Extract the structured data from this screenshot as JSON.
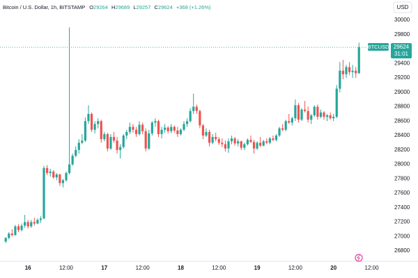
{
  "header": {
    "symbol": "Bitcoin / U.S. Dollar, 1h, BITSTAMP",
    "ohlc_labels": [
      "O",
      "H",
      "L",
      "C"
    ],
    "change": "+368 (+1.26%)",
    "currency": "USD"
  },
  "chart_data": {
    "type": "candlestick",
    "x": [
      -7,
      -6,
      -5,
      -4,
      -3,
      -2,
      -1,
      0,
      1,
      2,
      3,
      4,
      5,
      6,
      7,
      8,
      9,
      10,
      11,
      12,
      13,
      14,
      15,
      16,
      17,
      18,
      19,
      20,
      21,
      22,
      23,
      24,
      25,
      26,
      27,
      28,
      29,
      30,
      31,
      32,
      33,
      34,
      35,
      36,
      37,
      38,
      39,
      40,
      41,
      42,
      43,
      44,
      45,
      46,
      47,
      48,
      49,
      50,
      51,
      52,
      53,
      54,
      55,
      56,
      57,
      58,
      59,
      60,
      61,
      62,
      63,
      64,
      65,
      66,
      67,
      68,
      69,
      70,
      71,
      72,
      73,
      74,
      75,
      76,
      77,
      78,
      79,
      80,
      81,
      82,
      83,
      84,
      85,
      86,
      87,
      88,
      89,
      90,
      91,
      92,
      93,
      94,
      95,
      96,
      97,
      98,
      99,
      100,
      101,
      102,
      103,
      104
    ],
    "open": [
      26930,
      26980,
      27040,
      27020,
      27140,
      27090,
      27150,
      27200,
      27140,
      27200,
      27180,
      27230,
      27250,
      27950,
      27880,
      27900,
      27820,
      27860,
      27740,
      27780,
      27880,
      28000,
      28120,
      28200,
      28300,
      28330,
      28600,
      28700,
      28480,
      28560,
      28600,
      28350,
      28420,
      28220,
      28380,
      28330,
      28200,
      28240,
      28400,
      28450,
      28520,
      28480,
      28420,
      28550,
      28460,
      28220,
      28430,
      28580,
      28600,
      28420,
      28480,
      28510,
      28460,
      28520,
      28470,
      28420,
      28480,
      28560,
      28600,
      28740,
      28800,
      28740,
      28540,
      28400,
      28450,
      28300,
      28380,
      28350,
      28300,
      28280,
      28220,
      28320,
      28360,
      28290,
      28320,
      28230,
      28280,
      28340,
      28310,
      28220,
      28300,
      28260,
      28320,
      28300,
      28360,
      28340,
      28400,
      28500,
      28480,
      28600,
      28580,
      28640,
      28820,
      28620,
      28760,
      28740,
      28620,
      28680,
      28800,
      28660,
      28720,
      28660,
      28680,
      28640,
      28660,
      29050,
      29300,
      29250,
      29350,
      29280,
      29300,
      29264
    ],
    "high": [
      26990,
      27060,
      27100,
      27160,
      27170,
      27180,
      27300,
      27230,
      27230,
      27260,
      27250,
      27280,
      27980,
      27990,
      27940,
      27920,
      27880,
      27870,
      27800,
      27900,
      29900,
      28150,
      28250,
      28350,
      28420,
      28650,
      28820,
      28720,
      28600,
      28640,
      28620,
      28450,
      28440,
      28420,
      28450,
      28380,
      28280,
      28420,
      28480,
      28580,
      28560,
      28520,
      28600,
      28580,
      28500,
      28480,
      28600,
      28640,
      28620,
      28520,
      28560,
      28530,
      28560,
      28540,
      28520,
      28500,
      28600,
      28640,
      28780,
      28980,
      28830,
      28760,
      28560,
      28500,
      28480,
      28420,
      28440,
      28380,
      28360,
      28330,
      28360,
      28400,
      28380,
      28350,
      28330,
      28300,
      28360,
      28400,
      28340,
      28320,
      28380,
      28340,
      28360,
      28380,
      28400,
      28420,
      28520,
      28560,
      28620,
      28700,
      28660,
      28900,
      28850,
      28780,
      28880,
      28800,
      28700,
      28820,
      28830,
      28760,
      28740,
      28700,
      28720,
      28700,
      29100,
      29420,
      29450,
      29380,
      29420,
      29380,
      29350,
      29689
    ],
    "low": [
      26910,
      26960,
      27000,
      27010,
      27060,
      27070,
      27120,
      27110,
      27120,
      27150,
      27170,
      27190,
      27240,
      27850,
      27830,
      27800,
      27780,
      27700,
      27680,
      27760,
      27860,
      27980,
      28100,
      28150,
      28280,
      28310,
      28560,
      28450,
      28430,
      28500,
      28300,
      28320,
      28180,
      28200,
      28300,
      28150,
      28080,
      28220,
      28350,
      28420,
      28440,
      28380,
      28400,
      28420,
      28180,
      28200,
      28400,
      28520,
      28380,
      28360,
      28440,
      28430,
      28430,
      28440,
      28380,
      28400,
      28460,
      28520,
      28580,
      28700,
      28700,
      28500,
      28350,
      28380,
      28250,
      28280,
      28320,
      28270,
      28240,
      28180,
      28160,
      28280,
      28260,
      28250,
      28200,
      28200,
      28260,
      28300,
      28150,
      28200,
      28240,
      28250,
      28280,
      28280,
      28320,
      28320,
      28380,
      28460,
      28460,
      28560,
      28540,
      28600,
      28580,
      28600,
      28720,
      28580,
      28560,
      28660,
      28620,
      28640,
      28620,
      28600,
      28620,
      28600,
      28640,
      29000,
      29180,
      29200,
      29240,
      29200,
      29200,
      29257
    ],
    "close": [
      26980,
      27040,
      27020,
      27140,
      27090,
      27150,
      27200,
      27140,
      27200,
      27180,
      27230,
      27250,
      27950,
      27880,
      27900,
      27820,
      27860,
      27740,
      27780,
      27880,
      28000,
      28120,
      28200,
      28300,
      28330,
      28600,
      28700,
      28480,
      28560,
      28600,
      28350,
      28420,
      28220,
      28380,
      28330,
      28200,
      28240,
      28400,
      28450,
      28520,
      28480,
      28420,
      28550,
      28460,
      28220,
      28430,
      28580,
      28600,
      28420,
      28480,
      28510,
      28460,
      28520,
      28470,
      28420,
      28480,
      28560,
      28600,
      28740,
      28800,
      28740,
      28540,
      28400,
      28450,
      28300,
      28380,
      28350,
      28300,
      28280,
      28220,
      28320,
      28360,
      28290,
      28320,
      28230,
      28280,
      28340,
      28310,
      28220,
      28300,
      28260,
      28320,
      28300,
      28360,
      28340,
      28400,
      28500,
      28480,
      28600,
      28580,
      28640,
      28820,
      28620,
      28760,
      28740,
      28620,
      28680,
      28800,
      28660,
      28720,
      28660,
      28680,
      28640,
      28660,
      29050,
      29300,
      29250,
      29350,
      29280,
      29300,
      29264,
      29624
    ],
    "up_color": "#26a69a",
    "down_color": "#ef5350",
    "xlim": [
      -8.8,
      112.7
    ],
    "ylim": [
      26665,
      30280
    ],
    "xticks": [
      {
        "value": 0,
        "label": "16"
      },
      {
        "value": 12,
        "label": "12:00"
      },
      {
        "value": 24,
        "label": "17"
      },
      {
        "value": 36,
        "label": "12:00"
      },
      {
        "value": 48,
        "label": "18"
      },
      {
        "value": 60,
        "label": "12:00"
      },
      {
        "value": 72,
        "label": "19"
      },
      {
        "value": 84,
        "label": "12:00"
      },
      {
        "value": 96,
        "label": "20"
      },
      {
        "value": 108,
        "label": "12:00"
      }
    ],
    "yticks": [
      26800,
      27000,
      27200,
      27400,
      27600,
      27800,
      28000,
      28200,
      28400,
      28600,
      28800,
      29000,
      29200,
      29400,
      29600,
      29800,
      30000
    ],
    "last_price_label": {
      "symbol": "BTCUSD",
      "countdown": "31:01"
    }
  }
}
